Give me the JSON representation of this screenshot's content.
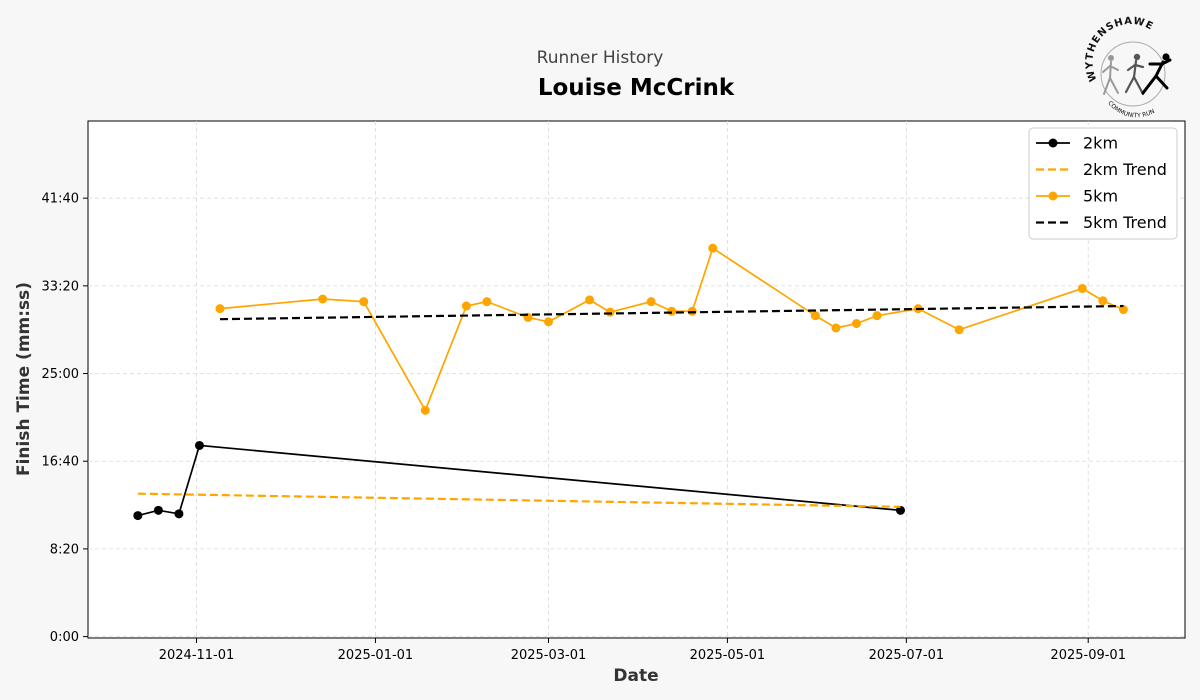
{
  "header": {
    "subtitle": "Runner History",
    "title": "Louise McCrink"
  },
  "logo": {
    "top_text": "WYTHENSHAWE",
    "bottom_text": "COMMUNITY RUN"
  },
  "colors": {
    "orange": "#ffa500",
    "black": "#000000",
    "grid": "#d9d9d9",
    "background": "#f7f7f7",
    "plot_background": "#ffffff"
  },
  "chart_data": {
    "type": "line",
    "xlabel": "Date",
    "ylabel": "Finish Time (mm:ss)",
    "x_ticks": [
      "2024-11-01",
      "2025-01-01",
      "2025-03-01",
      "2025-05-01",
      "2025-07-01",
      "2025-09-01"
    ],
    "y_ticks": [
      "0:00",
      "8:20",
      "16:40",
      "25:00",
      "33:20",
      "41:40"
    ],
    "xlim": [
      "2024-09-25",
      "2025-10-04"
    ],
    "ylim": [
      "-0:08",
      "49:00"
    ],
    "grid": true,
    "legend_position": "top-right",
    "series": [
      {
        "name": "2km",
        "style": "solid-marker",
        "color": "#000000",
        "points": [
          {
            "x": "2024-10-12",
            "y": "11:30"
          },
          {
            "x": "2024-10-19",
            "y": "12:00"
          },
          {
            "x": "2024-10-26",
            "y": "11:40"
          },
          {
            "x": "2024-11-02",
            "y": "18:10"
          },
          {
            "x": "2025-06-29",
            "y": "12:00"
          }
        ]
      },
      {
        "name": "2km Trend",
        "style": "dashed",
        "color": "#ffa500",
        "points": [
          {
            "x": "2024-10-12",
            "y": "13:35"
          },
          {
            "x": "2025-06-29",
            "y": "12:20"
          }
        ]
      },
      {
        "name": "5km",
        "style": "solid-marker",
        "color": "#ffa500",
        "points": [
          {
            "x": "2024-11-09",
            "y": "31:10"
          },
          {
            "x": "2024-12-14",
            "y": "32:05"
          },
          {
            "x": "2024-12-28",
            "y": "31:50"
          },
          {
            "x": "2025-01-18",
            "y": "21:30"
          },
          {
            "x": "2025-02-01",
            "y": "31:25"
          },
          {
            "x": "2025-02-08",
            "y": "31:50"
          },
          {
            "x": "2025-02-22",
            "y": "30:20"
          },
          {
            "x": "2025-03-01",
            "y": "29:55"
          },
          {
            "x": "2025-03-15",
            "y": "32:00"
          },
          {
            "x": "2025-03-22",
            "y": "30:50"
          },
          {
            "x": "2025-04-05",
            "y": "31:50"
          },
          {
            "x": "2025-04-12",
            "y": "30:55"
          },
          {
            "x": "2025-04-19",
            "y": "30:55"
          },
          {
            "x": "2025-04-26",
            "y": "36:55"
          },
          {
            "x": "2025-05-31",
            "y": "30:30"
          },
          {
            "x": "2025-06-07",
            "y": "29:20"
          },
          {
            "x": "2025-06-14",
            "y": "29:45"
          },
          {
            "x": "2025-06-21",
            "y": "30:30"
          },
          {
            "x": "2025-07-05",
            "y": "31:10"
          },
          {
            "x": "2025-07-19",
            "y": "29:10"
          },
          {
            "x": "2025-08-30",
            "y": "33:05"
          },
          {
            "x": "2025-09-06",
            "y": "31:55"
          },
          {
            "x": "2025-09-13",
            "y": "31:05"
          }
        ]
      },
      {
        "name": "5km Trend",
        "style": "dashed",
        "color": "#000000",
        "points": [
          {
            "x": "2024-11-09",
            "y": "30:10"
          },
          {
            "x": "2025-09-13",
            "y": "31:25"
          }
        ]
      }
    ]
  }
}
